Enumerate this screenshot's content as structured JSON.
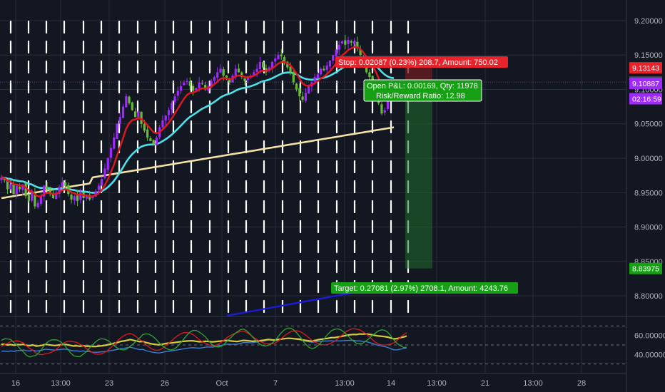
{
  "colors": {
    "background": "#131722",
    "grid": "#2a2e39",
    "bull": "#a029ff",
    "bear": "#66bb3a",
    "ema_fast": "#e0191f",
    "ema_mid": "#4ee0e8",
    "ema_slow": "#f5e0a8",
    "trend": "#1b1bd8",
    "stop_red": "#e8232b",
    "target_green": "#17a016",
    "position_green": "#1f6d2a",
    "position_red": "#6b1c20",
    "osc_yellow": "#d7cc3c",
    "osc_blue": "#3f7fd1",
    "osc_red": "#e0191f",
    "osc_green": "#2fa531"
  },
  "chart_data": {
    "type": "candlestick",
    "grid": true,
    "price_axis": {
      "ylim": [
        8.77,
        9.23
      ],
      "ticks": [
        "9.20000",
        "9.15000",
        "9.10000",
        "9.05000",
        "9.00000",
        "8.95000",
        "8.90000",
        "8.85000",
        "8.80000"
      ]
    },
    "time_axis": {
      "ticks": [
        "16",
        "13:00",
        "23",
        "26",
        "Oct",
        "7",
        "13:00",
        "14",
        "13:00",
        "21",
        "13:00",
        "28"
      ]
    },
    "closes": [
      8.972,
      8.968,
      8.955,
      8.962,
      8.948,
      8.96,
      8.955,
      8.962,
      8.945,
      8.938,
      8.95,
      8.93,
      8.935,
      8.945,
      8.96,
      8.955,
      8.948,
      8.942,
      8.95,
      8.958,
      8.965,
      8.96,
      8.948,
      8.94,
      8.945,
      8.938,
      8.95,
      8.942,
      8.946,
      8.94,
      8.944,
      8.952,
      8.96,
      8.97,
      8.985,
      9.0,
      9.015,
      9.03,
      9.05,
      9.06,
      9.075,
      9.09,
      9.08,
      9.07,
      9.06,
      9.068,
      9.05,
      9.04,
      9.03,
      9.025,
      9.02,
      9.03,
      9.045,
      9.055,
      9.062,
      9.07,
      9.08,
      9.09,
      9.098,
      9.105,
      9.11,
      9.112,
      9.105,
      9.098,
      9.102,
      9.11,
      9.108,
      9.1,
      9.105,
      9.112,
      9.118,
      9.125,
      9.13,
      9.12,
      9.115,
      9.11,
      9.12,
      9.13,
      9.125,
      9.118,
      9.112,
      9.118,
      9.12,
      9.125,
      9.13,
      9.14,
      9.132,
      9.125,
      9.132,
      9.14,
      9.145,
      9.15,
      9.148,
      9.14,
      9.132,
      9.125,
      9.11,
      9.1,
      9.09,
      9.085,
      9.095,
      9.105,
      9.11,
      9.118,
      9.122,
      9.13,
      9.128,
      9.135,
      9.142,
      9.15,
      9.158,
      9.165,
      9.17,
      9.165,
      9.172,
      9.168,
      9.17,
      9.16,
      9.15,
      9.135,
      9.125,
      9.118,
      9.11,
      9.1,
      9.08,
      9.065,
      9.07,
      9.085,
      9.095,
      9.11
    ],
    "price_tags": [
      {
        "value": 9.13143,
        "label": "9.13143",
        "color": "#e8232b"
      },
      {
        "value": 9.11056,
        "label": "9.11056",
        "color": "#4a4e59"
      },
      {
        "value": 9.10887,
        "label": "9.10887",
        "color": "#a029ff"
      },
      {
        "value": 9.0865,
        "label": "02:16:59",
        "color": "#a029ff"
      },
      {
        "value": 8.83975,
        "label": "8.83975",
        "color": "#17a016"
      }
    ],
    "position": {
      "entry": 9.11056,
      "stop": 9.13143,
      "target": 8.83975,
      "stop_label": "Stop: 0.02087 (0.23%) 208.7, Amount: 750.02",
      "open_label": "Open P&L: 0.00169, Qty: 11978",
      "rr_label": "Risk/Reward Ratio: 12.98",
      "target_label": "Target: 0.27081 (2.97%) 2708.1, Amount: 4243.76"
    },
    "oscillator": {
      "ylim": [
        20,
        80
      ],
      "ticks": [
        "60.00000",
        "40.00000"
      ],
      "levels": [
        70,
        50,
        30
      ]
    }
  }
}
